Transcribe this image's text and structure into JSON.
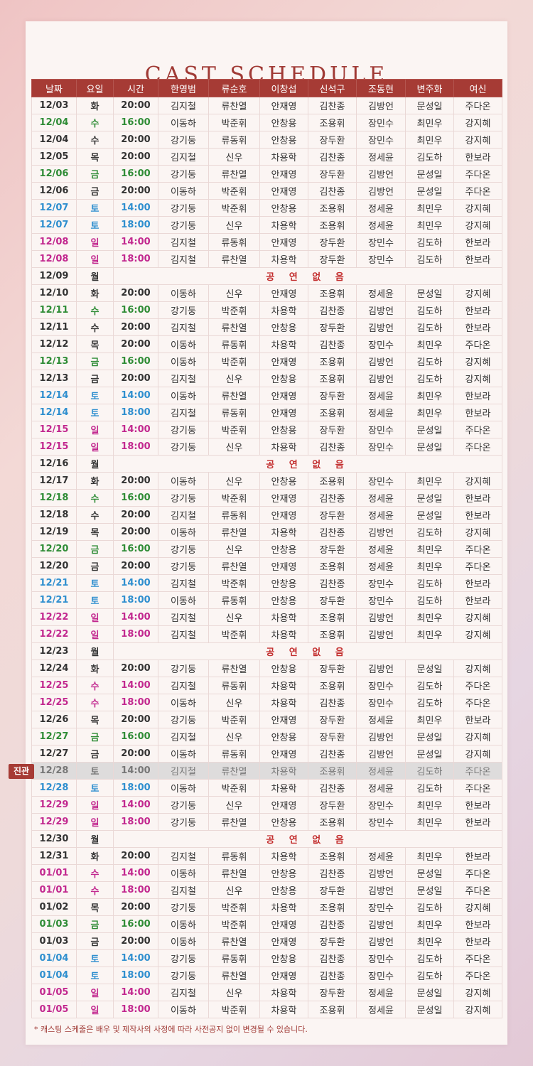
{
  "title": "CAST SCHEDULE",
  "headers": [
    "날짜",
    "요일",
    "시간",
    "한영범",
    "류순호",
    "이창섭",
    "신석구",
    "조동현",
    "변주화",
    "여신"
  ],
  "no_show_label": "공 연 없 음",
  "highlight_tag": "진관",
  "note": "* 캐스팅 스케줄은 배우 및 제작사의 사정에 따라 사전공지 없이 변경될 수 있습니다.",
  "colors": {
    "header_bg": "#a63b35",
    "wed": "#2f8c36",
    "sat": "#2f8fcf",
    "sun": "#c2288f",
    "no_show": "#c32d2d"
  },
  "rows": [
    {
      "date": "12/03",
      "day": "화",
      "time": "20:00",
      "cast": [
        "김지철",
        "류찬열",
        "안재영",
        "김찬종",
        "김방언",
        "문성일",
        "주다온"
      ]
    },
    {
      "date": "12/04",
      "day": "수",
      "time": "16:00",
      "cast": [
        "이동하",
        "박준휘",
        "안창용",
        "조용휘",
        "장민수",
        "최민우",
        "강지혜"
      ]
    },
    {
      "date": "12/04",
      "day": "수",
      "time": "20:00",
      "cast": [
        "강기둥",
        "류동휘",
        "안창용",
        "장두환",
        "장민수",
        "최민우",
        "강지혜"
      ]
    },
    {
      "date": "12/05",
      "day": "목",
      "time": "20:00",
      "cast": [
        "김지철",
        "신우",
        "차용학",
        "김찬종",
        "정세윤",
        "김도하",
        "한보라"
      ]
    },
    {
      "date": "12/06",
      "day": "금",
      "time": "16:00",
      "cast": [
        "강기둥",
        "류찬열",
        "안재영",
        "장두환",
        "김방언",
        "문성일",
        "주다온"
      ]
    },
    {
      "date": "12/06",
      "day": "금",
      "time": "20:00",
      "cast": [
        "이동하",
        "박준휘",
        "안재영",
        "김찬종",
        "김방언",
        "문성일",
        "주다온"
      ]
    },
    {
      "date": "12/07",
      "day": "토",
      "time": "14:00",
      "cast": [
        "강기둥",
        "박준휘",
        "안창용",
        "조용휘",
        "정세윤",
        "최민우",
        "강지혜"
      ]
    },
    {
      "date": "12/07",
      "day": "토",
      "time": "18:00",
      "cast": [
        "강기둥",
        "신우",
        "차용학",
        "조용휘",
        "정세윤",
        "최민우",
        "강지혜"
      ]
    },
    {
      "date": "12/08",
      "day": "일",
      "time": "14:00",
      "cast": [
        "김지철",
        "류동휘",
        "안재영",
        "장두환",
        "장민수",
        "김도하",
        "한보라"
      ]
    },
    {
      "date": "12/08",
      "day": "일",
      "time": "18:00",
      "cast": [
        "김지철",
        "류찬열",
        "차용학",
        "장두환",
        "장민수",
        "김도하",
        "한보라"
      ]
    },
    {
      "date": "12/09",
      "day": "월",
      "none": true
    },
    {
      "date": "12/10",
      "day": "화",
      "time": "20:00",
      "cast": [
        "이동하",
        "신우",
        "안재영",
        "조용휘",
        "정세윤",
        "문성일",
        "강지혜"
      ]
    },
    {
      "date": "12/11",
      "day": "수",
      "time": "16:00",
      "cast": [
        "강기둥",
        "박준휘",
        "차용학",
        "김찬종",
        "김방언",
        "김도하",
        "한보라"
      ]
    },
    {
      "date": "12/11",
      "day": "수",
      "time": "20:00",
      "cast": [
        "김지철",
        "류찬열",
        "안창용",
        "장두환",
        "김방언",
        "김도하",
        "한보라"
      ]
    },
    {
      "date": "12/12",
      "day": "목",
      "time": "20:00",
      "cast": [
        "이동하",
        "류동휘",
        "차용학",
        "김찬종",
        "장민수",
        "최민우",
        "주다온"
      ]
    },
    {
      "date": "12/13",
      "day": "금",
      "time": "16:00",
      "cast": [
        "이동하",
        "박준휘",
        "안재영",
        "조용휘",
        "김방언",
        "김도하",
        "강지혜"
      ]
    },
    {
      "date": "12/13",
      "day": "금",
      "time": "20:00",
      "cast": [
        "김지철",
        "신우",
        "안창용",
        "조용휘",
        "김방언",
        "김도하",
        "강지혜"
      ]
    },
    {
      "date": "12/14",
      "day": "토",
      "time": "14:00",
      "cast": [
        "이동하",
        "류찬열",
        "안재영",
        "장두환",
        "정세윤",
        "최민우",
        "한보라"
      ]
    },
    {
      "date": "12/14",
      "day": "토",
      "time": "18:00",
      "cast": [
        "김지철",
        "류동휘",
        "안재영",
        "조용휘",
        "정세윤",
        "최민우",
        "한보라"
      ]
    },
    {
      "date": "12/15",
      "day": "일",
      "time": "14:00",
      "cast": [
        "강기둥",
        "박준휘",
        "안창용",
        "장두환",
        "장민수",
        "문성일",
        "주다온"
      ]
    },
    {
      "date": "12/15",
      "day": "일",
      "time": "18:00",
      "cast": [
        "강기둥",
        "신우",
        "차용학",
        "김찬종",
        "장민수",
        "문성일",
        "주다온"
      ]
    },
    {
      "date": "12/16",
      "day": "월",
      "none": true
    },
    {
      "date": "12/17",
      "day": "화",
      "time": "20:00",
      "cast": [
        "이동하",
        "신우",
        "안창용",
        "조용휘",
        "장민수",
        "최민우",
        "강지혜"
      ]
    },
    {
      "date": "12/18",
      "day": "수",
      "time": "16:00",
      "cast": [
        "강기둥",
        "박준휘",
        "안재영",
        "김찬종",
        "정세윤",
        "문성일",
        "한보라"
      ]
    },
    {
      "date": "12/18",
      "day": "수",
      "time": "20:00",
      "cast": [
        "김지철",
        "류동휘",
        "안재영",
        "장두환",
        "정세윤",
        "문성일",
        "한보라"
      ]
    },
    {
      "date": "12/19",
      "day": "목",
      "time": "20:00",
      "cast": [
        "이동하",
        "류찬열",
        "차용학",
        "김찬종",
        "김방언",
        "김도하",
        "강지혜"
      ]
    },
    {
      "date": "12/20",
      "day": "금",
      "time": "16:00",
      "cast": [
        "강기둥",
        "신우",
        "안창용",
        "장두환",
        "정세윤",
        "최민우",
        "주다온"
      ]
    },
    {
      "date": "12/20",
      "day": "금",
      "time": "20:00",
      "cast": [
        "강기둥",
        "류찬열",
        "안재영",
        "조용휘",
        "정세윤",
        "최민우",
        "주다온"
      ]
    },
    {
      "date": "12/21",
      "day": "토",
      "time": "14:00",
      "cast": [
        "김지철",
        "박준휘",
        "안창용",
        "김찬종",
        "장민수",
        "김도하",
        "한보라"
      ]
    },
    {
      "date": "12/21",
      "day": "토",
      "time": "18:00",
      "cast": [
        "이동하",
        "류동휘",
        "안창용",
        "장두환",
        "장민수",
        "김도하",
        "한보라"
      ]
    },
    {
      "date": "12/22",
      "day": "일",
      "time": "14:00",
      "cast": [
        "김지철",
        "신우",
        "차용학",
        "조용휘",
        "김방언",
        "최민우",
        "강지혜"
      ]
    },
    {
      "date": "12/22",
      "day": "일",
      "time": "18:00",
      "cast": [
        "김지철",
        "박준휘",
        "차용학",
        "조용휘",
        "김방언",
        "최민우",
        "강지혜"
      ]
    },
    {
      "date": "12/23",
      "day": "월",
      "none": true
    },
    {
      "date": "12/24",
      "day": "화",
      "time": "20:00",
      "cast": [
        "강기둥",
        "류찬열",
        "안창용",
        "장두환",
        "김방언",
        "문성일",
        "강지혜"
      ]
    },
    {
      "date": "12/25",
      "day": "수",
      "time": "14:00",
      "mat": true,
      "cast": [
        "김지철",
        "류동휘",
        "차용학",
        "조용휘",
        "장민수",
        "김도하",
        "주다온"
      ]
    },
    {
      "date": "12/25",
      "day": "수",
      "time": "18:00",
      "mat": true,
      "cast": [
        "이동하",
        "신우",
        "차용학",
        "김찬종",
        "장민수",
        "김도하",
        "주다온"
      ]
    },
    {
      "date": "12/26",
      "day": "목",
      "time": "20:00",
      "cast": [
        "강기둥",
        "박준휘",
        "안재영",
        "장두환",
        "정세윤",
        "최민우",
        "한보라"
      ]
    },
    {
      "date": "12/27",
      "day": "금",
      "time": "16:00",
      "cast": [
        "김지철",
        "신우",
        "안창용",
        "장두환",
        "김방언",
        "문성일",
        "강지혜"
      ]
    },
    {
      "date": "12/27",
      "day": "금",
      "time": "20:00",
      "cast": [
        "이동하",
        "류동휘",
        "안재영",
        "김찬종",
        "김방언",
        "문성일",
        "강지혜"
      ]
    },
    {
      "date": "12/28",
      "day": "토",
      "time": "14:00",
      "hl": true,
      "cast": [
        "김지철",
        "류찬열",
        "차용학",
        "조용휘",
        "정세윤",
        "김도하",
        "주다온"
      ]
    },
    {
      "date": "12/28",
      "day": "토",
      "time": "18:00",
      "cast": [
        "이동하",
        "박준휘",
        "차용학",
        "김찬종",
        "정세윤",
        "김도하",
        "주다온"
      ]
    },
    {
      "date": "12/29",
      "day": "일",
      "time": "14:00",
      "cast": [
        "강기둥",
        "신우",
        "안재영",
        "장두환",
        "장민수",
        "최민우",
        "한보라"
      ]
    },
    {
      "date": "12/29",
      "day": "일",
      "time": "18:00",
      "cast": [
        "강기둥",
        "류찬열",
        "안창용",
        "조용휘",
        "장민수",
        "최민우",
        "한보라"
      ]
    },
    {
      "date": "12/30",
      "day": "월",
      "none": true
    },
    {
      "date": "12/31",
      "day": "화",
      "time": "20:00",
      "cast": [
        "김지철",
        "류동휘",
        "차용학",
        "조용휘",
        "정세윤",
        "최민우",
        "한보라"
      ]
    },
    {
      "date": "01/01",
      "day": "수",
      "time": "14:00",
      "mat": true,
      "cast": [
        "이동하",
        "류찬열",
        "안창용",
        "김찬종",
        "김방언",
        "문성일",
        "주다온"
      ]
    },
    {
      "date": "01/01",
      "day": "수",
      "time": "18:00",
      "mat": true,
      "cast": [
        "김지철",
        "신우",
        "안창용",
        "장두환",
        "김방언",
        "문성일",
        "주다온"
      ]
    },
    {
      "date": "01/02",
      "day": "목",
      "time": "20:00",
      "cast": [
        "강기둥",
        "박준휘",
        "차용학",
        "조용휘",
        "장민수",
        "김도하",
        "강지혜"
      ]
    },
    {
      "date": "01/03",
      "day": "금",
      "time": "16:00",
      "cast": [
        "이동하",
        "박준휘",
        "안재영",
        "김찬종",
        "김방언",
        "최민우",
        "한보라"
      ]
    },
    {
      "date": "01/03",
      "day": "금",
      "time": "20:00",
      "cast": [
        "이동하",
        "류찬열",
        "안재영",
        "장두환",
        "김방언",
        "최민우",
        "한보라"
      ]
    },
    {
      "date": "01/04",
      "day": "토",
      "time": "14:00",
      "cast": [
        "강기둥",
        "류동휘",
        "안창용",
        "김찬종",
        "장민수",
        "김도하",
        "주다온"
      ]
    },
    {
      "date": "01/04",
      "day": "토",
      "time": "18:00",
      "cast": [
        "강기둥",
        "류찬열",
        "안재영",
        "김찬종",
        "장민수",
        "김도하",
        "주다온"
      ]
    },
    {
      "date": "01/05",
      "day": "일",
      "time": "14:00",
      "cast": [
        "김지철",
        "신우",
        "차용학",
        "장두환",
        "정세윤",
        "문성일",
        "강지혜"
      ]
    },
    {
      "date": "01/05",
      "day": "일",
      "time": "18:00",
      "cast": [
        "이동하",
        "박준휘",
        "차용학",
        "조용휘",
        "정세윤",
        "문성일",
        "강지혜"
      ]
    }
  ]
}
